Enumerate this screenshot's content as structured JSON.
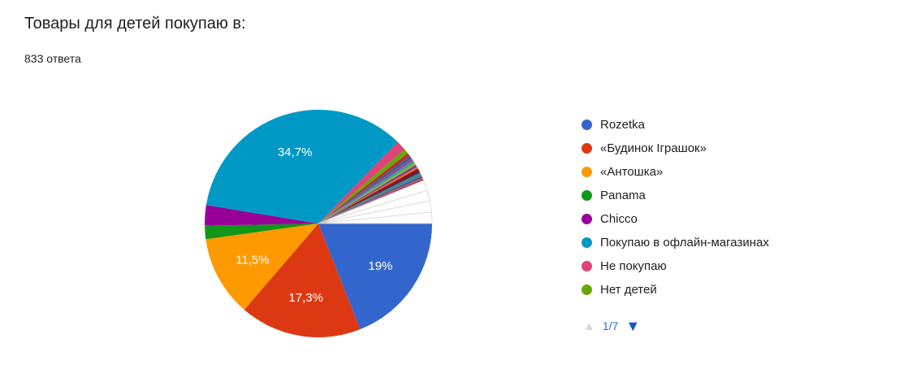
{
  "header": {
    "title": "Товары для детей покупаю в:",
    "subtitle": "833 ответа"
  },
  "legend": {
    "items": [
      {
        "label": "Rozetka",
        "color": "#3366CC"
      },
      {
        "label": "«Будинок Іграшок»",
        "color": "#DC3912"
      },
      {
        "label": "«Антошка»",
        "color": "#FF9900"
      },
      {
        "label": "Panama",
        "color": "#109618"
      },
      {
        "label": "Chicco",
        "color": "#990099"
      },
      {
        "label": "Покупаю в офлайн-магазинах",
        "color": "#0099C6"
      },
      {
        "label": "Не покупаю",
        "color": "#DD4477"
      },
      {
        "label": "Нет детей",
        "color": "#66AA00"
      }
    ],
    "pagination": {
      "page_indicator": "1/7",
      "prev_icon": "▲",
      "next_icon": "▼",
      "prev_enabled": false,
      "next_enabled": true
    }
  },
  "chart_data": {
    "type": "pie",
    "title": "Товары для детей покупаю в:",
    "subtitle": "833 ответа",
    "total_responses": 833,
    "legend_position": "right",
    "start_angle_deg": 0,
    "direction": "clockwise",
    "slices": [
      {
        "slug": "rozetka",
        "label": "Rozetka",
        "value_pct": 19.0,
        "display": "19%",
        "color": "#3366CC"
      },
      {
        "slug": "budynok-igrashok",
        "label": "«Будинок Іграшок»",
        "value_pct": 17.3,
        "display": "17,3%",
        "color": "#DC3912"
      },
      {
        "slug": "antoshka",
        "label": "«Антошка»",
        "value_pct": 11.5,
        "display": "11,5%",
        "color": "#FF9900"
      },
      {
        "slug": "panama",
        "label": "Panama",
        "value_pct": 1.9,
        "color": "#109618"
      },
      {
        "slug": "chicco",
        "label": "Chicco",
        "value_pct": 2.9,
        "color": "#990099"
      },
      {
        "slug": "offline-stores",
        "label": "Покупаю в офлайн-магазинах",
        "value_pct": 34.7,
        "display": "34,7%",
        "color": "#0099C6"
      },
      {
        "slug": "ne-pokupayu",
        "label": "Не покупаю",
        "value_pct": 1.4,
        "color": "#DD4477"
      },
      {
        "slug": "net-detey",
        "label": "Нет детей",
        "value_pct": 0.7,
        "color": "#66AA00"
      },
      {
        "slug": "other-1",
        "label": "other",
        "value_pct": 0.5,
        "color": "#B82E2E"
      },
      {
        "slug": "other-2",
        "label": "other",
        "value_pct": 0.4,
        "color": "#316395"
      },
      {
        "slug": "other-3",
        "label": "other",
        "value_pct": 0.4,
        "color": "#994499"
      },
      {
        "slug": "other-4",
        "label": "other",
        "value_pct": 0.4,
        "color": "#22AA99"
      },
      {
        "slug": "other-5",
        "label": "other",
        "value_pct": 0.3,
        "color": "#AAAA11"
      },
      {
        "slug": "other-6",
        "label": "other",
        "value_pct": 0.3,
        "color": "#6633CC"
      },
      {
        "slug": "other-7",
        "label": "other",
        "value_pct": 0.3,
        "color": "#E67300"
      },
      {
        "slug": "other-8",
        "label": "other",
        "value_pct": 0.3,
        "color": "#8B0707"
      },
      {
        "slug": "other-9",
        "label": "other",
        "value_pct": 0.3,
        "color": "#651067"
      },
      {
        "slug": "other-10",
        "label": "other",
        "value_pct": 0.3,
        "color": "#329262"
      },
      {
        "slug": "other-11",
        "label": "other",
        "value_pct": 0.3,
        "color": "#5574A6"
      },
      {
        "slug": "other-12",
        "label": "other",
        "value_pct": 0.2,
        "color": "#3B3EAC"
      },
      {
        "slug": "other-13",
        "label": "other",
        "value_pct": 0.2,
        "color": "#B77322"
      },
      {
        "slug": "other-14",
        "label": "other",
        "value_pct": 0.2,
        "color": "#B91383"
      },
      {
        "slug": "other-white-1",
        "label": "other",
        "value_pct": 1.5,
        "color": "#FFFFFF"
      },
      {
        "slug": "other-white-2",
        "label": "other",
        "value_pct": 1.5,
        "color": "#FFFFFF"
      },
      {
        "slug": "other-white-3",
        "label": "other",
        "value_pct": 1.6,
        "color": "#FFFFFF"
      },
      {
        "slug": "other-white-4",
        "label": "other",
        "value_pct": 1.6,
        "color": "#FFFFFF"
      }
    ]
  }
}
